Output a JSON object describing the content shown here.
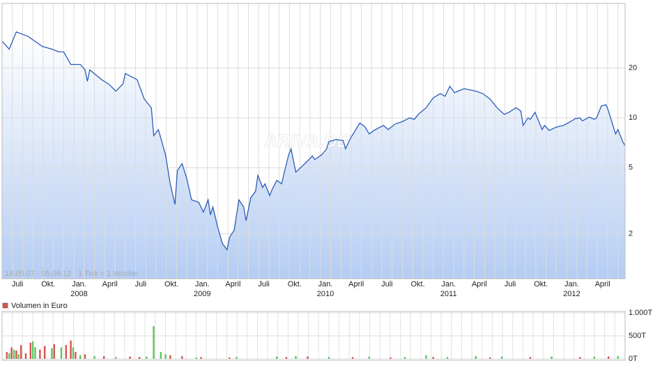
{
  "chart_data": [
    {
      "type": "line",
      "log_scale": true,
      "grid": true,
      "color": "#2a5cb8",
      "watermark": "ARIVA.DE",
      "range_note": "18.05.07 - 05.06.12",
      "tick_note": "1 Tick = 1 Woche",
      "x": [
        0,
        3,
        6,
        11,
        17,
        21,
        24,
        26,
        29,
        33,
        35,
        36,
        37,
        42,
        45,
        48,
        51,
        52,
        57,
        60,
        63,
        64,
        66,
        69,
        71,
        73,
        74,
        76,
        78,
        80,
        83,
        85,
        87,
        88,
        89,
        91,
        93,
        95,
        96,
        98,
        100,
        102,
        103,
        105,
        107,
        108,
        110,
        111,
        113,
        114,
        116,
        118,
        119,
        121,
        122,
        124,
        126,
        129,
        131,
        132,
        135,
        137,
        138,
        141,
        144,
        145,
        147,
        151,
        153,
        155,
        157,
        159,
        161,
        163,
        166,
        169,
        172,
        174,
        176,
        179,
        182,
        185,
        187,
        189,
        191,
        195,
        200,
        203,
        206,
        209,
        212,
        214,
        217,
        219,
        220,
        222,
        223,
        225,
        228,
        229,
        231,
        234,
        237,
        240,
        242,
        244,
        245,
        248,
        250,
        251,
        253,
        255,
        256,
        259,
        260,
        262,
        263
      ],
      "values": [
        29,
        26,
        33,
        31,
        27,
        26,
        25,
        25,
        21,
        21,
        19.5,
        16.6,
        19.5,
        17,
        16,
        14.5,
        16,
        18.5,
        17,
        13,
        11.5,
        7.8,
        8.5,
        6,
        4,
        3,
        4.8,
        5.3,
        4.3,
        3.2,
        3.1,
        2.7,
        3.2,
        2.6,
        2.9,
        2.2,
        1.75,
        1.6,
        1.9,
        2.1,
        3.2,
        2.9,
        2.4,
        3.3,
        3.6,
        4.5,
        3.8,
        4,
        3.4,
        3.7,
        4.2,
        4,
        4.6,
        6,
        6.5,
        4.7,
        5,
        5.5,
        5.9,
        5.6,
        6,
        6.5,
        7.2,
        7.4,
        7.3,
        6.5,
        7.5,
        9.3,
        8.9,
        8,
        8.4,
        8.7,
        9,
        8.5,
        9.2,
        9.5,
        10,
        9.8,
        10.6,
        11.5,
        13.2,
        14,
        13.5,
        15.5,
        14.2,
        15,
        14.5,
        14,
        13,
        11.5,
        10.5,
        10.8,
        11.5,
        11,
        9,
        10,
        9.8,
        10.8,
        8.5,
        9,
        8.4,
        8.8,
        9,
        9.5,
        9.9,
        10,
        9.6,
        10.1,
        9.8,
        10,
        11.8,
        12,
        11,
        8,
        8.5,
        7.2,
        6.8
      ],
      "xlim": [
        0,
        263
      ],
      "ylim": [
        1.07,
        49
      ],
      "yticks": [
        2,
        5,
        10,
        20
      ],
      "xticks": [
        {
          "value": 6.5,
          "label": "Juli"
        },
        {
          "value": 19.5,
          "label": "Okt."
        },
        {
          "value": 32.5,
          "label": "Jan."
        },
        {
          "value": 45.5,
          "label": "April"
        },
        {
          "value": 58.5,
          "label": "Juli"
        },
        {
          "value": 71.5,
          "label": "Okt."
        },
        {
          "value": 84.5,
          "label": "Jan."
        },
        {
          "value": 97.5,
          "label": "April"
        },
        {
          "value": 110.5,
          "label": "Juli"
        },
        {
          "value": 123.5,
          "label": "Okt."
        },
        {
          "value": 136.5,
          "label": "Jan."
        },
        {
          "value": 149.5,
          "label": "April"
        },
        {
          "value": 162.5,
          "label": "Juli"
        },
        {
          "value": 175.5,
          "label": "Okt."
        },
        {
          "value": 188.5,
          "label": "Jan."
        },
        {
          "value": 201.5,
          "label": "April"
        },
        {
          "value": 214.5,
          "label": "Juli"
        },
        {
          "value": 227.5,
          "label": "Okt."
        },
        {
          "value": 240.5,
          "label": "Jan."
        },
        {
          "value": 253.5,
          "label": "April"
        }
      ],
      "year_ticks": [
        {
          "value": 32.5,
          "label": "2008"
        },
        {
          "value": 84.5,
          "label": "2009"
        },
        {
          "value": 136.5,
          "label": "2010"
        },
        {
          "value": 188.5,
          "label": "2011"
        },
        {
          "value": 240.5,
          "label": "2012"
        }
      ]
    },
    {
      "type": "bar",
      "title": "Volumen in Euro",
      "xlim": [
        0,
        263
      ],
      "ylim": [
        0,
        1000
      ],
      "yticks": [
        {
          "value": 1000,
          "label": "1.000T"
        },
        {
          "value": 500,
          "label": "500T"
        },
        {
          "value": 0,
          "label": "0T"
        }
      ],
      "series": [
        {
          "color": "#d9534f",
          "x": [
            2,
            4,
            6,
            8,
            10,
            12,
            16,
            18,
            22,
            27,
            29,
            31,
            35,
            43,
            54,
            58,
            71,
            76,
            84,
            96,
            120,
            129,
            148,
            164,
            182,
            206,
            223,
            244,
            256
          ],
          "values": [
            150,
            250,
            180,
            300,
            120,
            350,
            200,
            280,
            320,
            300,
            400,
            150,
            100,
            60,
            50,
            40,
            80,
            60,
            40,
            30,
            40,
            50,
            40,
            30,
            40,
            30,
            40,
            40,
            50
          ]
        },
        {
          "color": "#5cc45c",
          "x": [
            3,
            5,
            7,
            13,
            14,
            21,
            25,
            30,
            33,
            39,
            48,
            61,
            64,
            67,
            69,
            82,
            99,
            116,
            124,
            138,
            155,
            170,
            179,
            188,
            200,
            211,
            232,
            250,
            260
          ],
          "values": [
            120,
            200,
            100,
            380,
            250,
            230,
            250,
            250,
            80,
            60,
            40,
            50,
            712,
            150,
            100,
            30,
            40,
            50,
            60,
            40,
            50,
            40,
            80,
            40,
            60,
            50,
            50,
            50,
            60
          ]
        }
      ]
    }
  ]
}
